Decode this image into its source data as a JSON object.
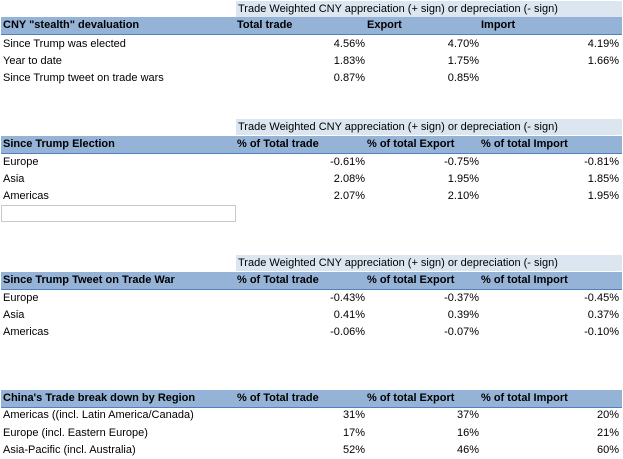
{
  "section1": {
    "title": "Trade Weighted CNY appreciation (+ sign) or depreciation (- sign)",
    "header": [
      "CNY \"stealth\" devaluation",
      "Total trade",
      "Export",
      "Import"
    ],
    "rows": [
      [
        "Since Trump was elected",
        "4.56%",
        "4.70%",
        "4.19%"
      ],
      [
        "Year to date",
        "1.83%",
        "1.75%",
        "1.66%"
      ],
      [
        "Since Trump tweet on trade wars",
        "0.87%",
        "0.85%",
        ""
      ]
    ]
  },
  "section2": {
    "title": "Trade Weighted CNY appreciation (+ sign) or depreciation (- sign)",
    "header": [
      "Since Trump Election",
      "% of Total trade",
      "% of total Export",
      "% of total Import"
    ],
    "rows": [
      [
        "Europe",
        "-0.61%",
        "-0.75%",
        "-0.81%"
      ],
      [
        "Asia",
        "2.08%",
        "1.95%",
        "1.85%"
      ],
      [
        "Americas",
        "2.07%",
        "2.10%",
        "1.95%"
      ]
    ]
  },
  "section3": {
    "title": "Trade Weighted CNY appreciation (+ sign) or depreciation (- sign)",
    "header": [
      "Since Trump Tweet on Trade War",
      "% of Total trade",
      "% of total Export",
      "% of total Import"
    ],
    "rows": [
      [
        "Europe",
        "-0.43%",
        "-0.37%",
        "-0.45%"
      ],
      [
        "Asia",
        "0.41%",
        "0.39%",
        "0.37%"
      ],
      [
        "Americas",
        "-0.06%",
        "-0.07%",
        "-0.10%"
      ]
    ]
  },
  "section4": {
    "header": [
      "China's Trade break down by Region",
      "% of Total trade",
      "% of total Export",
      "% of total Import"
    ],
    "rows": [
      [
        "Americas ((incl. Latin America/Canada)",
        "31%",
        "37%",
        "20%"
      ],
      [
        "Europe (incl. Eastern Europe)",
        "17%",
        "16%",
        "21%"
      ],
      [
        "Asia-Pacific (incl. Australia)",
        "52%",
        "46%",
        "60%"
      ]
    ]
  }
}
